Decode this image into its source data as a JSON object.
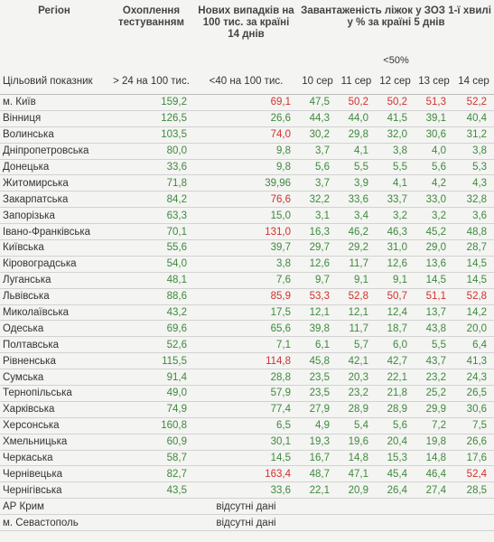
{
  "header": {
    "columns": [
      "Регіон",
      "Охоплення тестуванням",
      "Нових випадків на 100 тис. за країні 14 днів",
      "Завантаженість ліжок у ЗОЗ 1-ї хвилі у % за країні 5 днів"
    ],
    "threshold_note": "<50%",
    "targets": [
      "Цільовий показник",
      "> 24 на 100 тис.",
      "<40 на 100 тис.",
      "10 сер",
      "11 сер",
      "12 сер",
      "13 сер",
      "14 сер"
    ]
  },
  "table": {
    "rows": [
      {
        "region": "м. Київ",
        "values": [
          "159,2",
          "69,1",
          "47,5",
          "50,2",
          "50,2",
          "51,3",
          "52,2"
        ],
        "colors": [
          "#3c8a3c",
          "#d0312d",
          "#3c8a3c",
          "#d0312d",
          "#d0312d",
          "#d0312d",
          "#d0312d"
        ]
      },
      {
        "region": "Вінниця",
        "values": [
          "126,5",
          "26,6",
          "44,3",
          "44,0",
          "41,5",
          "39,1",
          "40,4"
        ],
        "colors": [
          "#3c8a3c",
          "#3c8a3c",
          "#3c8a3c",
          "#3c8a3c",
          "#3c8a3c",
          "#3c8a3c",
          "#3c8a3c"
        ]
      },
      {
        "region": "Волинська",
        "values": [
          "103,5",
          "74,0",
          "30,2",
          "29,8",
          "32,0",
          "30,6",
          "31,2"
        ],
        "colors": [
          "#3c8a3c",
          "#d0312d",
          "#3c8a3c",
          "#3c8a3c",
          "#3c8a3c",
          "#3c8a3c",
          "#3c8a3c"
        ]
      },
      {
        "region": "Дніпропетровська",
        "values": [
          "80,0",
          "9,8",
          "3,7",
          "4,1",
          "3,8",
          "4,0",
          "3,8"
        ],
        "colors": [
          "#3c8a3c",
          "#3c8a3c",
          "#3c8a3c",
          "#3c8a3c",
          "#3c8a3c",
          "#3c8a3c",
          "#3c8a3c"
        ]
      },
      {
        "region": "Донецька",
        "values": [
          "33,6",
          "9,8",
          "5,6",
          "5,5",
          "5,5",
          "5,6",
          "5,3"
        ],
        "colors": [
          "#3c8a3c",
          "#3c8a3c",
          "#3c8a3c",
          "#3c8a3c",
          "#3c8a3c",
          "#3c8a3c",
          "#3c8a3c"
        ]
      },
      {
        "region": "Житомирська",
        "values": [
          "71,8",
          "39,96",
          "3,7",
          "3,9",
          "4,1",
          "4,2",
          "4,3"
        ],
        "colors": [
          "#3c8a3c",
          "#3c8a3c",
          "#3c8a3c",
          "#3c8a3c",
          "#3c8a3c",
          "#3c8a3c",
          "#3c8a3c"
        ]
      },
      {
        "region": "Закарпатська",
        "values": [
          "84,2",
          "76,6",
          "32,2",
          "33,6",
          "33,7",
          "33,0",
          "32,8"
        ],
        "colors": [
          "#3c8a3c",
          "#d0312d",
          "#3c8a3c",
          "#3c8a3c",
          "#3c8a3c",
          "#3c8a3c",
          "#3c8a3c"
        ]
      },
      {
        "region": "Запорізька",
        "values": [
          "63,3",
          "15,0",
          "3,1",
          "3,4",
          "3,2",
          "3,2",
          "3,6"
        ],
        "colors": [
          "#3c8a3c",
          "#3c8a3c",
          "#3c8a3c",
          "#3c8a3c",
          "#3c8a3c",
          "#3c8a3c",
          "#3c8a3c"
        ]
      },
      {
        "region": "Івано-Франківська",
        "values": [
          "70,1",
          "131,0",
          "16,3",
          "46,2",
          "46,3",
          "45,2",
          "48,8"
        ],
        "colors": [
          "#3c8a3c",
          "#d0312d",
          "#3c8a3c",
          "#3c8a3c",
          "#3c8a3c",
          "#3c8a3c",
          "#3c8a3c"
        ]
      },
      {
        "region": "Київська",
        "values": [
          "55,6",
          "39,7",
          "29,7",
          "29,2",
          "31,0",
          "29,0",
          "28,7"
        ],
        "colors": [
          "#3c8a3c",
          "#3c8a3c",
          "#3c8a3c",
          "#3c8a3c",
          "#3c8a3c",
          "#3c8a3c",
          "#3c8a3c"
        ]
      },
      {
        "region": "Кіровоградська",
        "values": [
          "54,0",
          "3,8",
          "12,6",
          "11,7",
          "12,6",
          "13,6",
          "14,5"
        ],
        "colors": [
          "#3c8a3c",
          "#3c8a3c",
          "#3c8a3c",
          "#3c8a3c",
          "#3c8a3c",
          "#3c8a3c",
          "#3c8a3c"
        ]
      },
      {
        "region": "Луганська",
        "values": [
          "48,1",
          "7,6",
          "9,7",
          "9,1",
          "9,1",
          "14,5",
          "14,5"
        ],
        "colors": [
          "#3c8a3c",
          "#3c8a3c",
          "#3c8a3c",
          "#3c8a3c",
          "#3c8a3c",
          "#3c8a3c",
          "#3c8a3c"
        ]
      },
      {
        "region": "Львівська",
        "values": [
          "88,6",
          "85,9",
          "53,3",
          "52,8",
          "50,7",
          "51,1",
          "52,8"
        ],
        "colors": [
          "#3c8a3c",
          "#d0312d",
          "#d0312d",
          "#d0312d",
          "#d0312d",
          "#d0312d",
          "#d0312d"
        ]
      },
      {
        "region": "Миколаївська",
        "values": [
          "43,2",
          "17,5",
          "12,1",
          "12,1",
          "12,4",
          "13,7",
          "14,2"
        ],
        "colors": [
          "#3c8a3c",
          "#3c8a3c",
          "#3c8a3c",
          "#3c8a3c",
          "#3c8a3c",
          "#3c8a3c",
          "#3c8a3c"
        ]
      },
      {
        "region": "Одеська",
        "values": [
          "69,6",
          "65,6",
          "39,8",
          "11,7",
          "18,7",
          "43,8",
          "20,0"
        ],
        "colors": [
          "#3c8a3c",
          "#3c8a3c",
          "#3c8a3c",
          "#3c8a3c",
          "#3c8a3c",
          "#3c8a3c",
          "#3c8a3c"
        ]
      },
      {
        "region": "Полтавська",
        "values": [
          "52,6",
          "7,1",
          "6,1",
          "5,7",
          "6,0",
          "5,5",
          "6,4"
        ],
        "colors": [
          "#3c8a3c",
          "#3c8a3c",
          "#3c8a3c",
          "#3c8a3c",
          "#3c8a3c",
          "#3c8a3c",
          "#3c8a3c"
        ]
      },
      {
        "region": "Рівненська",
        "values": [
          "115,5",
          "114,8",
          "45,8",
          "42,1",
          "42,7",
          "43,7",
          "41,3"
        ],
        "colors": [
          "#3c8a3c",
          "#d0312d",
          "#3c8a3c",
          "#3c8a3c",
          "#3c8a3c",
          "#3c8a3c",
          "#3c8a3c"
        ]
      },
      {
        "region": "Сумська",
        "values": [
          "91,4",
          "28,8",
          "23,5",
          "20,3",
          "22,1",
          "23,2",
          "24,3"
        ],
        "colors": [
          "#3c8a3c",
          "#3c8a3c",
          "#3c8a3c",
          "#3c8a3c",
          "#3c8a3c",
          "#3c8a3c",
          "#3c8a3c"
        ]
      },
      {
        "region": "Тернопільська",
        "values": [
          "49,0",
          "57,9",
          "23,5",
          "23,2",
          "21,8",
          "25,2",
          "26,5"
        ],
        "colors": [
          "#3c8a3c",
          "#3c8a3c",
          "#3c8a3c",
          "#3c8a3c",
          "#3c8a3c",
          "#3c8a3c",
          "#3c8a3c"
        ]
      },
      {
        "region": "Харківська",
        "values": [
          "74,9",
          "77,4",
          "27,9",
          "28,9",
          "28,9",
          "29,9",
          "30,6"
        ],
        "colors": [
          "#3c8a3c",
          "#3c8a3c",
          "#3c8a3c",
          "#3c8a3c",
          "#3c8a3c",
          "#3c8a3c",
          "#3c8a3c"
        ]
      },
      {
        "region": "Херсонська",
        "values": [
          "160,8",
          "6,5",
          "4,9",
          "5,4",
          "5,6",
          "7,2",
          "7,5"
        ],
        "colors": [
          "#3c8a3c",
          "#3c8a3c",
          "#3c8a3c",
          "#3c8a3c",
          "#3c8a3c",
          "#3c8a3c",
          "#3c8a3c"
        ]
      },
      {
        "region": "Хмельницька",
        "values": [
          "60,9",
          "30,1",
          "19,3",
          "19,6",
          "20,4",
          "19,8",
          "26,6"
        ],
        "colors": [
          "#3c8a3c",
          "#3c8a3c",
          "#3c8a3c",
          "#3c8a3c",
          "#3c8a3c",
          "#3c8a3c",
          "#3c8a3c"
        ]
      },
      {
        "region": "Черкаська",
        "values": [
          "58,7",
          "14,5",
          "16,7",
          "14,8",
          "15,3",
          "14,8",
          "17,6"
        ],
        "colors": [
          "#3c8a3c",
          "#3c8a3c",
          "#3c8a3c",
          "#3c8a3c",
          "#3c8a3c",
          "#3c8a3c",
          "#3c8a3c"
        ]
      },
      {
        "region": "Чернівецька",
        "values": [
          "82,7",
          "163,4",
          "48,7",
          "47,1",
          "45,4",
          "46,4",
          "52,4"
        ],
        "colors": [
          "#3c8a3c",
          "#d0312d",
          "#3c8a3c",
          "#3c8a3c",
          "#3c8a3c",
          "#3c8a3c",
          "#d0312d"
        ]
      },
      {
        "region": "Чернігівська",
        "values": [
          "43,5",
          "33,6",
          "22,1",
          "20,9",
          "26,4",
          "27,4",
          "28,5"
        ],
        "colors": [
          "#3c8a3c",
          "#3c8a3c",
          "#3c8a3c",
          "#3c8a3c",
          "#3c8a3c",
          "#3c8a3c",
          "#3c8a3c"
        ]
      },
      {
        "region": "АР Крим",
        "note": "відсутні дані"
      },
      {
        "region": "м. Севастополь",
        "note": "відсутні дані"
      }
    ]
  }
}
